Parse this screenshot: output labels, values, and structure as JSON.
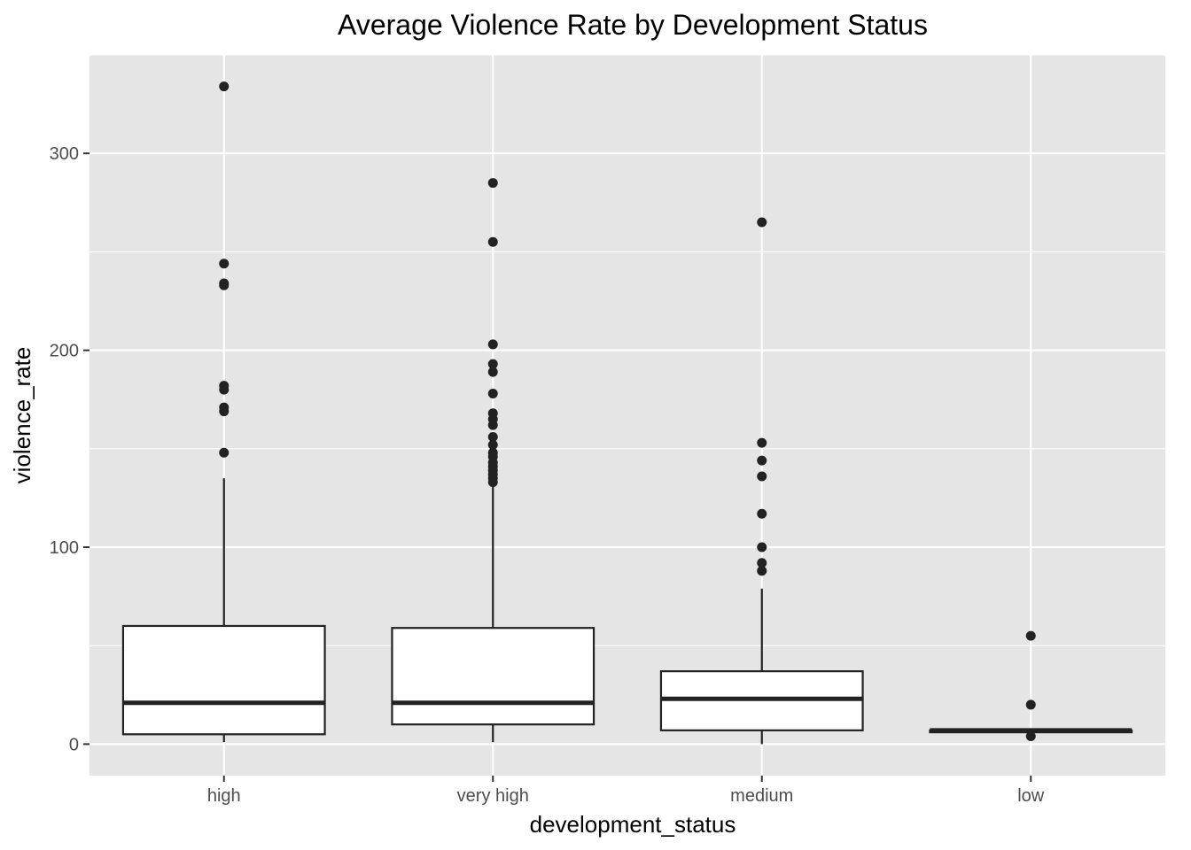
{
  "chart_data": {
    "type": "boxplot",
    "title": "Average Violence Rate by Development Status",
    "xlabel": "development_status",
    "ylabel": "violence_rate",
    "categories": [
      "high",
      "very high",
      "medium",
      "low"
    ],
    "ylim": [
      -16,
      350
    ],
    "y_ticks": [
      0,
      100,
      200,
      300
    ],
    "grid": true,
    "boxes": [
      {
        "category": "high",
        "whisker_low": 1,
        "q1": 5,
        "median": 21,
        "q3": 60,
        "whisker_high": 135,
        "outliers": [
          334,
          244,
          234,
          233,
          182,
          180,
          171,
          169,
          148
        ]
      },
      {
        "category": "very high",
        "whisker_low": 1,
        "q1": 10,
        "median": 21,
        "q3": 59,
        "whisker_high": 133,
        "outliers": [
          285,
          255,
          203,
          193,
          189,
          178,
          168,
          165,
          162,
          156,
          152,
          148,
          146,
          143,
          141,
          139,
          137,
          135,
          133
        ]
      },
      {
        "category": "medium",
        "whisker_low": 0,
        "q1": 7,
        "median": 23,
        "q3": 37,
        "whisker_high": 79,
        "outliers": [
          265,
          153,
          144,
          136,
          117,
          100,
          92,
          88
        ]
      },
      {
        "category": "low",
        "whisker_low": 6,
        "q1": 6,
        "median": 7,
        "q3": 7,
        "whisker_high": 7,
        "outliers": [
          55,
          20,
          4
        ]
      }
    ]
  }
}
